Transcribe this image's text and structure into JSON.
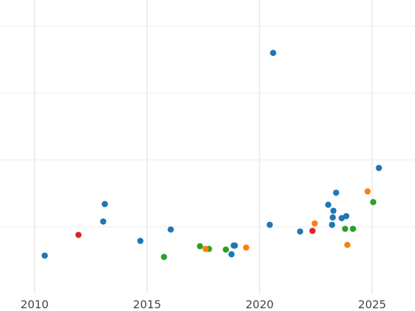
{
  "chart_data": {
    "type": "scatter",
    "title": "",
    "xlabel": "",
    "ylabel": "",
    "grid": true,
    "legend": "none",
    "xlim": [
      2010,
      2026.9
    ],
    "ylim": [
      0,
      4.2
    ],
    "x_ticks": [
      2010,
      2015,
      2020,
      2025
    ],
    "x_tick_labels": [
      "2010",
      "2015",
      "2020",
      "2025"
    ],
    "y_gridlines": [
      1,
      2,
      3,
      4
    ],
    "series": [
      {
        "color": "#1f77b4",
        "x": [
          2010.45,
          2013.05,
          2013.12,
          2014.7,
          2016.05,
          2018.75,
          2018.85,
          2018.9,
          2020.45,
          2020.6,
          2021.8,
          2023.05,
          2023.22,
          2023.25,
          2023.28,
          2023.4,
          2023.65,
          2023.85,
          2025.3
        ],
        "y": [
          0.57,
          1.08,
          1.34,
          0.79,
          0.96,
          0.59,
          0.72,
          0.72,
          1.03,
          3.6,
          0.93,
          1.33,
          1.03,
          1.14,
          1.24,
          1.51,
          1.13,
          1.16,
          1.88
        ]
      },
      {
        "color": "#d62728",
        "x": [
          2011.95,
          2022.35
        ],
        "y": [
          0.88,
          0.94
        ]
      },
      {
        "color": "#2ca02c",
        "x": [
          2015.75,
          2017.35,
          2017.75,
          2018.5,
          2023.8,
          2024.15,
          2025.05
        ],
        "y": [
          0.55,
          0.71,
          0.67,
          0.66,
          0.97,
          0.97,
          1.37
        ]
      },
      {
        "color": "#ff7f0e",
        "x": [
          2017.6,
          2019.4,
          2022.45,
          2023.9,
          2024.8
        ],
        "y": [
          0.67,
          0.69,
          1.05,
          0.73,
          1.53
        ]
      }
    ]
  }
}
